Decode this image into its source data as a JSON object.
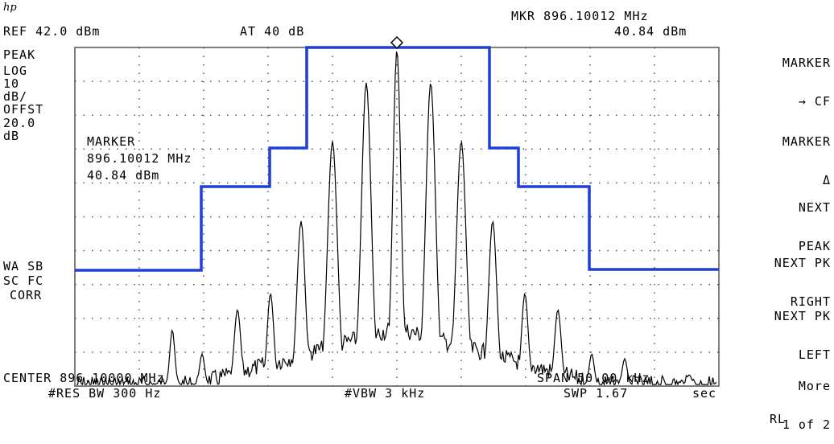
{
  "header": {
    "logo": "hp",
    "ref": "REF 42.0 dBm",
    "atten": "AT 40 dB",
    "marker_freq": "MKR 896.10012 MHz",
    "marker_level": "40.84 dBm"
  },
  "left_labels": {
    "peak": "PEAK",
    "log": "LOG",
    "scale": "10",
    "unit": "dB/",
    "offst": "OFFST",
    "offset_value": "20.0",
    "offset_unit": "dB",
    "wa_sb": "WA SB",
    "sc_fc": "SC FC",
    "corr": "CORR"
  },
  "marker_box": {
    "title": "MARKER",
    "freq": "896.10012 MHz",
    "level": "40.84 dBm"
  },
  "footer": {
    "center": "CENTER 896.10000 MHz",
    "span": "SPAN 50.00 kHz",
    "rbw": "#RES BW 300 Hz",
    "vbw": "#VBW 3 kHz",
    "sweep": "SWP 1.67",
    "sweep_unit": "sec"
  },
  "softkeys": [
    {
      "line1": "MARKER",
      "line2": "→ CF"
    },
    {
      "line1": "MARKER",
      "line2": "Δ"
    },
    {
      "line1": "NEXT",
      "line2": "PEAK"
    },
    {
      "line1": "NEXT PK",
      "line2": "RIGHT"
    },
    {
      "line1": "NEXT PK",
      "line2": "LEFT"
    },
    {
      "line1": "More",
      "line2": "1 of 2"
    },
    {
      "line1": "RL",
      "line2": ""
    }
  ],
  "colors": {
    "trace": "#000000",
    "limit_line": "#1f3fd6",
    "graticule": "#555555"
  }
}
